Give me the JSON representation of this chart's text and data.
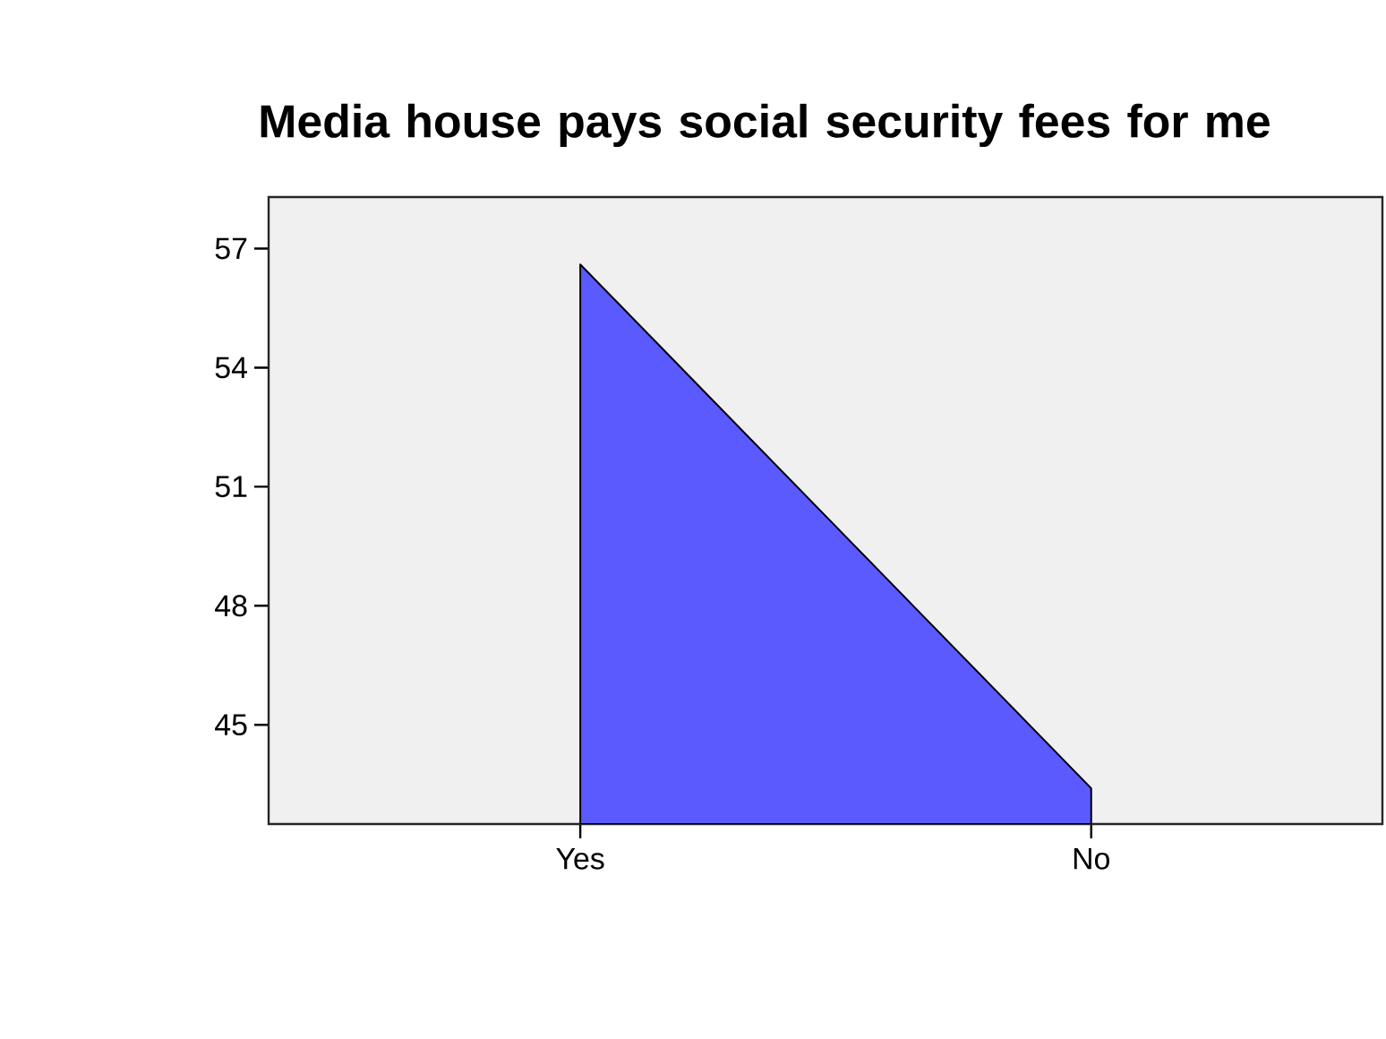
{
  "chart_data": {
    "type": "area",
    "title": "Media house pays social security fees for me",
    "categories": [
      "Yes",
      "No"
    ],
    "values": [
      56.6,
      43.4
    ],
    "color": "#5a5aff",
    "ylim": [
      42.5,
      58.3
    ],
    "yticks": [
      45,
      48,
      51,
      54,
      57
    ],
    "grid": false
  }
}
